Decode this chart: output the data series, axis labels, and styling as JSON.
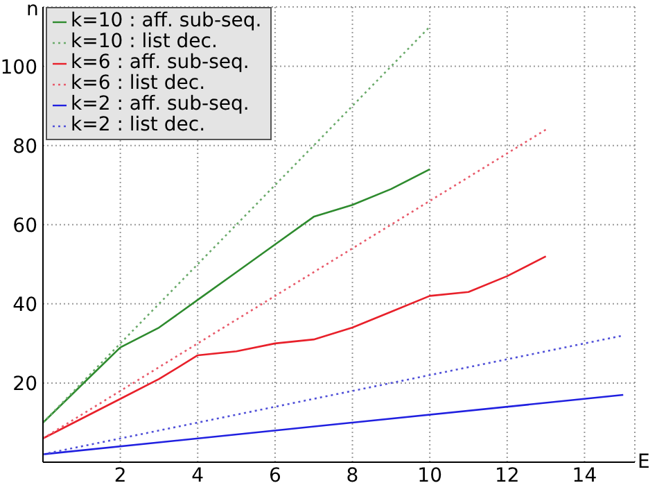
{
  "chart_data": {
    "type": "line",
    "xlabel": "E",
    "ylabel": "n",
    "xlim": [
      0,
      15.3
    ],
    "ylim": [
      0,
      115
    ],
    "xticks": [
      2,
      4,
      6,
      8,
      10,
      12,
      14
    ],
    "yticks": [
      20,
      40,
      60,
      80,
      100
    ],
    "grid": true,
    "legend": "top left",
    "marker": "none",
    "series": [
      {
        "name": "k=10 : aff. sub-seq.",
        "color": "#2e8b2e",
        "line_style": "solid",
        "x": [
          0,
          1,
          2,
          3,
          4,
          5,
          6,
          7,
          8,
          9,
          10
        ],
        "values": [
          10,
          19.5,
          29,
          34,
          41,
          48,
          55,
          62,
          65,
          69,
          74
        ]
      },
      {
        "name": "k=10 : list dec.",
        "color": "#6aaa6a",
        "line_style": "dotted",
        "x": [
          0,
          10
        ],
        "values": [
          10,
          110
        ]
      },
      {
        "name": "k=6 : aff. sub-seq.",
        "color": "#e8202a",
        "line_style": "solid",
        "x": [
          0,
          1,
          2,
          3,
          4,
          5,
          6,
          7,
          8,
          9,
          10,
          11,
          12,
          13
        ],
        "values": [
          6,
          11,
          16,
          21,
          27,
          28,
          30,
          31,
          34,
          38,
          42,
          43,
          47,
          52
        ]
      },
      {
        "name": "k=6 : list dec.",
        "color": "#e85a6a",
        "line_style": "dotted",
        "x": [
          0,
          13
        ],
        "values": [
          6,
          84
        ]
      },
      {
        "name": "k=2 : aff. sub-seq.",
        "color": "#2020e0",
        "line_style": "solid",
        "x": [
          0,
          15
        ],
        "values": [
          2,
          17
        ]
      },
      {
        "name": "k=2 : list dec.",
        "color": "#5050d8",
        "line_style": "dotted",
        "x": [
          0,
          15
        ],
        "values": [
          2,
          32
        ]
      }
    ]
  }
}
